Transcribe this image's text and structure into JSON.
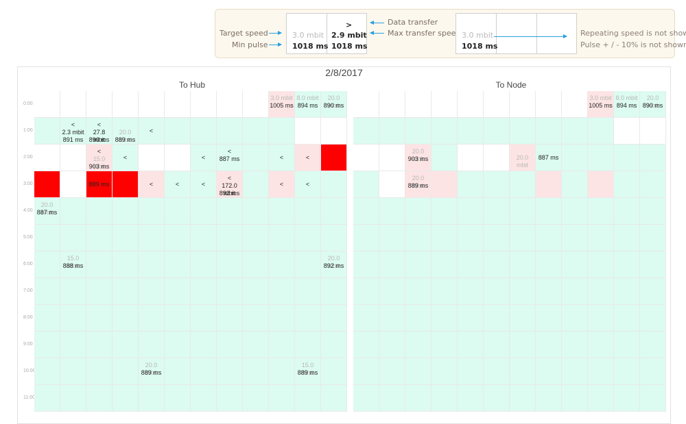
{
  "legend": {
    "target_speed": "Target speed",
    "min_pulse": "Min pulse",
    "box1": {
      "speed": "3.0 mbit",
      "pulse": "1018 ms"
    },
    "box2": {
      "arrow": ">",
      "speed": "2.9 mbit",
      "pulse": "1018 ms"
    },
    "data_transfer": "Data transfer",
    "max_transfer_speed": "Max transfer speed",
    "box3": {
      "speed": "3.0 mbit",
      "pulse": "1018 ms"
    },
    "repeating_note": "Repeating speed is not shown",
    "pulse_note": "Pulse + / - 10% is not shown",
    "colors": {
      "arrow": "#2a9fdc",
      "background": "#fdf8ee"
    }
  },
  "schedule": {
    "date": "2/8/2017",
    "to_hub_title": "To Hub",
    "to_node_title": "To Node",
    "hours": [
      "0:00",
      "1:00",
      "2:00",
      "3:00",
      "4:00",
      "5:00",
      "6:00",
      "7:00",
      "8:00",
      "9:00",
      "10:00",
      "11:00"
    ],
    "colors": {
      "green": "#dcfbf1",
      "pink": "#fde4e4",
      "red": "#ff0000",
      "white": "#ffffff"
    },
    "to_hub_rows": [
      [
        {
          "bg": "white"
        },
        {
          "bg": "white"
        },
        {
          "bg": "white"
        },
        {
          "bg": "white"
        },
        {
          "bg": "white"
        },
        {
          "bg": "white"
        },
        {
          "bg": "white"
        },
        {
          "bg": "white"
        },
        {
          "bg": "white"
        },
        {
          "bg": "pink",
          "l1": "3.0 mbit",
          "l1c": "dim",
          "l2": "1005 ms"
        },
        {
          "bg": "green",
          "l1": "8.0 mbit",
          "l1c": "dim",
          "l2": "894 ms"
        },
        {
          "bg": "green",
          "l1": "20.0 mbit",
          "l1c": "dim",
          "l2": "890 ms"
        }
      ],
      [
        {
          "bg": "green"
        },
        {
          "bg": "green",
          "l1": "<",
          "l2": "2.3 mbit",
          "l3": "891 ms"
        },
        {
          "bg": "green",
          "l1": "<",
          "l2": "27.8 mbit",
          "l3": "890 ms"
        },
        {
          "bg": "green",
          "l2": "20.0 mbit",
          "l2c": "dim",
          "l3": "889 ms"
        },
        {
          "bg": "green",
          "single": "<"
        },
        {
          "bg": "green"
        },
        {
          "bg": "green"
        },
        {
          "bg": "green"
        },
        {
          "bg": "green"
        },
        {
          "bg": "green"
        },
        {
          "bg": "white"
        },
        {
          "bg": "white"
        }
      ],
      [
        {
          "bg": "white"
        },
        {
          "bg": "white"
        },
        {
          "bg": "pink",
          "l1": "<",
          "l2": "15.0 mbit",
          "l2c": "dim",
          "l3": "903 ms"
        },
        {
          "bg": "green",
          "single": "<"
        },
        {
          "bg": "white"
        },
        {
          "bg": "white"
        },
        {
          "bg": "green",
          "single": "<"
        },
        {
          "bg": "green",
          "l1": "<",
          "l2": "887 ms",
          "top": 9
        },
        {
          "bg": "green"
        },
        {
          "bg": "green",
          "single": "<"
        },
        {
          "bg": "pink",
          "single": "<"
        },
        {
          "bg": "red"
        }
      ],
      [
        {
          "bg": "red"
        },
        {
          "bg": "white"
        },
        {
          "bg": "red",
          "single": "889 ms"
        },
        {
          "bg": "red"
        },
        {
          "bg": "pink",
          "single": "<"
        },
        {
          "bg": "green",
          "single": "<"
        },
        {
          "bg": "green",
          "single": "<"
        },
        {
          "bg": "pink",
          "l1": "<",
          "l2": "172.0 mbit",
          "l3": "892 ms"
        },
        {
          "bg": "green"
        },
        {
          "bg": "pink",
          "single": "<"
        },
        {
          "bg": "green",
          "single": "<"
        },
        {
          "bg": "green"
        }
      ],
      [
        {
          "bg": "green",
          "l1": "20.0 mbit",
          "l1c": "dim",
          "l2": "887 ms"
        },
        {
          "bg": "green"
        },
        {
          "bg": "green"
        },
        {
          "bg": "green"
        },
        {
          "bg": "green"
        },
        {
          "bg": "green"
        },
        {
          "bg": "green"
        },
        {
          "bg": "green"
        },
        {
          "bg": "green"
        },
        {
          "bg": "green"
        },
        {
          "bg": "green"
        },
        {
          "bg": "green"
        }
      ],
      [
        {
          "bg": "green"
        },
        {
          "bg": "green"
        },
        {
          "bg": "green"
        },
        {
          "bg": "green"
        },
        {
          "bg": "green"
        },
        {
          "bg": "green"
        },
        {
          "bg": "green"
        },
        {
          "bg": "green"
        },
        {
          "bg": "green"
        },
        {
          "bg": "green"
        },
        {
          "bg": "green"
        },
        {
          "bg": "green"
        }
      ],
      [
        {
          "bg": "green"
        },
        {
          "bg": "green",
          "l1": "15.0 mbit",
          "l1c": "dim",
          "l2": "888 ms"
        },
        {
          "bg": "green"
        },
        {
          "bg": "green"
        },
        {
          "bg": "green"
        },
        {
          "bg": "green"
        },
        {
          "bg": "green"
        },
        {
          "bg": "green"
        },
        {
          "bg": "green"
        },
        {
          "bg": "green"
        },
        {
          "bg": "green"
        },
        {
          "bg": "green",
          "l1": "20.0 mbit",
          "l1c": "dim",
          "l2": "892 ms"
        }
      ],
      [
        {
          "bg": "green"
        },
        {
          "bg": "green"
        },
        {
          "bg": "green"
        },
        {
          "bg": "green"
        },
        {
          "bg": "green"
        },
        {
          "bg": "green"
        },
        {
          "bg": "green"
        },
        {
          "bg": "green"
        },
        {
          "bg": "green"
        },
        {
          "bg": "green"
        },
        {
          "bg": "green"
        },
        {
          "bg": "green"
        }
      ],
      [
        {
          "bg": "green"
        },
        {
          "bg": "green"
        },
        {
          "bg": "green"
        },
        {
          "bg": "green"
        },
        {
          "bg": "green"
        },
        {
          "bg": "green"
        },
        {
          "bg": "green"
        },
        {
          "bg": "green"
        },
        {
          "bg": "green"
        },
        {
          "bg": "green"
        },
        {
          "bg": "green"
        },
        {
          "bg": "green"
        }
      ],
      [
        {
          "bg": "green"
        },
        {
          "bg": "green"
        },
        {
          "bg": "green"
        },
        {
          "bg": "green"
        },
        {
          "bg": "green"
        },
        {
          "bg": "green"
        },
        {
          "bg": "green"
        },
        {
          "bg": "green"
        },
        {
          "bg": "green"
        },
        {
          "bg": "green"
        },
        {
          "bg": "green"
        },
        {
          "bg": "green"
        }
      ],
      [
        {
          "bg": "green"
        },
        {
          "bg": "green"
        },
        {
          "bg": "green"
        },
        {
          "bg": "green"
        },
        {
          "bg": "green",
          "l1": "20.0 mbit",
          "l1c": "dim",
          "l2": "889 ms"
        },
        {
          "bg": "green"
        },
        {
          "bg": "green"
        },
        {
          "bg": "green"
        },
        {
          "bg": "green"
        },
        {
          "bg": "green"
        },
        {
          "bg": "green",
          "l1": "15.0 mbit",
          "l1c": "dim",
          "l2": "889 ms"
        },
        {
          "bg": "green"
        }
      ],
      [
        {
          "bg": "green"
        },
        {
          "bg": "green"
        },
        {
          "bg": "green"
        },
        {
          "bg": "green"
        },
        {
          "bg": "green"
        },
        {
          "bg": "green"
        },
        {
          "bg": "green"
        },
        {
          "bg": "green"
        },
        {
          "bg": "green"
        },
        {
          "bg": "green"
        },
        {
          "bg": "green"
        },
        {
          "bg": "green"
        }
      ]
    ],
    "to_node_rows": [
      [
        {
          "bg": "white"
        },
        {
          "bg": "white"
        },
        {
          "bg": "white"
        },
        {
          "bg": "white"
        },
        {
          "bg": "white"
        },
        {
          "bg": "white"
        },
        {
          "bg": "white"
        },
        {
          "bg": "white"
        },
        {
          "bg": "white"
        },
        {
          "bg": "pink",
          "l1": "3.0 mbit",
          "l1c": "dim",
          "l2": "1005 ms"
        },
        {
          "bg": "green",
          "l1": "8.0 mbit",
          "l1c": "dim",
          "l2": "894 ms"
        },
        {
          "bg": "green",
          "l1": "20.0 mbit",
          "l1c": "dim",
          "l2": "890 ms"
        }
      ],
      [
        {
          "bg": "green"
        },
        {
          "bg": "green"
        },
        {
          "bg": "green"
        },
        {
          "bg": "green"
        },
        {
          "bg": "green"
        },
        {
          "bg": "green"
        },
        {
          "bg": "green"
        },
        {
          "bg": "green"
        },
        {
          "bg": "green"
        },
        {
          "bg": "green"
        },
        {
          "bg": "white"
        },
        {
          "bg": "white"
        }
      ],
      [
        {
          "bg": "white"
        },
        {
          "bg": "white"
        },
        {
          "bg": "pink",
          "l1": "20.0 mbit",
          "l1c": "dim",
          "l2": "903 ms"
        },
        {
          "bg": "green"
        },
        {
          "bg": "white"
        },
        {
          "bg": "white"
        },
        {
          "bg": "pink",
          "single": "20.0 mbit",
          "sc": "dim"
        },
        {
          "bg": "green",
          "single": "887 ms"
        },
        {
          "bg": "green"
        },
        {
          "bg": "green"
        },
        {
          "bg": "green"
        },
        {
          "bg": "green"
        }
      ],
      [
        {
          "bg": "green"
        },
        {
          "bg": "white"
        },
        {
          "bg": "pink",
          "l1": "20.0 mbit",
          "l1c": "dim",
          "l2": "889 ms"
        },
        {
          "bg": "pink"
        },
        {
          "bg": "green"
        },
        {
          "bg": "green"
        },
        {
          "bg": "green"
        },
        {
          "bg": "pink"
        },
        {
          "bg": "green"
        },
        {
          "bg": "pink"
        },
        {
          "bg": "green"
        },
        {
          "bg": "green"
        }
      ],
      [
        {
          "bg": "green"
        },
        {
          "bg": "green"
        },
        {
          "bg": "green"
        },
        {
          "bg": "green"
        },
        {
          "bg": "green"
        },
        {
          "bg": "green"
        },
        {
          "bg": "green"
        },
        {
          "bg": "green"
        },
        {
          "bg": "green"
        },
        {
          "bg": "green"
        },
        {
          "bg": "green"
        },
        {
          "bg": "green"
        }
      ],
      [
        {
          "bg": "green"
        },
        {
          "bg": "green"
        },
        {
          "bg": "green"
        },
        {
          "bg": "green"
        },
        {
          "bg": "green"
        },
        {
          "bg": "green"
        },
        {
          "bg": "green"
        },
        {
          "bg": "green"
        },
        {
          "bg": "green"
        },
        {
          "bg": "green"
        },
        {
          "bg": "green"
        },
        {
          "bg": "green"
        }
      ],
      [
        {
          "bg": "green"
        },
        {
          "bg": "green"
        },
        {
          "bg": "green"
        },
        {
          "bg": "green"
        },
        {
          "bg": "green"
        },
        {
          "bg": "green"
        },
        {
          "bg": "green"
        },
        {
          "bg": "green"
        },
        {
          "bg": "green"
        },
        {
          "bg": "green"
        },
        {
          "bg": "green"
        },
        {
          "bg": "green"
        }
      ],
      [
        {
          "bg": "green"
        },
        {
          "bg": "green"
        },
        {
          "bg": "green"
        },
        {
          "bg": "green"
        },
        {
          "bg": "green"
        },
        {
          "bg": "green"
        },
        {
          "bg": "green"
        },
        {
          "bg": "green"
        },
        {
          "bg": "green"
        },
        {
          "bg": "green"
        },
        {
          "bg": "green"
        },
        {
          "bg": "green"
        }
      ],
      [
        {
          "bg": "green"
        },
        {
          "bg": "green"
        },
        {
          "bg": "green"
        },
        {
          "bg": "green"
        },
        {
          "bg": "green"
        },
        {
          "bg": "green"
        },
        {
          "bg": "green"
        },
        {
          "bg": "green"
        },
        {
          "bg": "green"
        },
        {
          "bg": "green"
        },
        {
          "bg": "green"
        },
        {
          "bg": "green"
        }
      ],
      [
        {
          "bg": "green"
        },
        {
          "bg": "green"
        },
        {
          "bg": "green"
        },
        {
          "bg": "green"
        },
        {
          "bg": "green"
        },
        {
          "bg": "green"
        },
        {
          "bg": "green"
        },
        {
          "bg": "green"
        },
        {
          "bg": "green"
        },
        {
          "bg": "green"
        },
        {
          "bg": "green"
        },
        {
          "bg": "green"
        }
      ],
      [
        {
          "bg": "green"
        },
        {
          "bg": "green"
        },
        {
          "bg": "green"
        },
        {
          "bg": "green"
        },
        {
          "bg": "green"
        },
        {
          "bg": "green"
        },
        {
          "bg": "green"
        },
        {
          "bg": "green"
        },
        {
          "bg": "green"
        },
        {
          "bg": "green"
        },
        {
          "bg": "green"
        },
        {
          "bg": "green"
        }
      ],
      [
        {
          "bg": "green"
        },
        {
          "bg": "green"
        },
        {
          "bg": "green"
        },
        {
          "bg": "green"
        },
        {
          "bg": "green"
        },
        {
          "bg": "green"
        },
        {
          "bg": "green"
        },
        {
          "bg": "green"
        },
        {
          "bg": "green"
        },
        {
          "bg": "green"
        },
        {
          "bg": "green"
        },
        {
          "bg": "green"
        }
      ]
    ]
  }
}
